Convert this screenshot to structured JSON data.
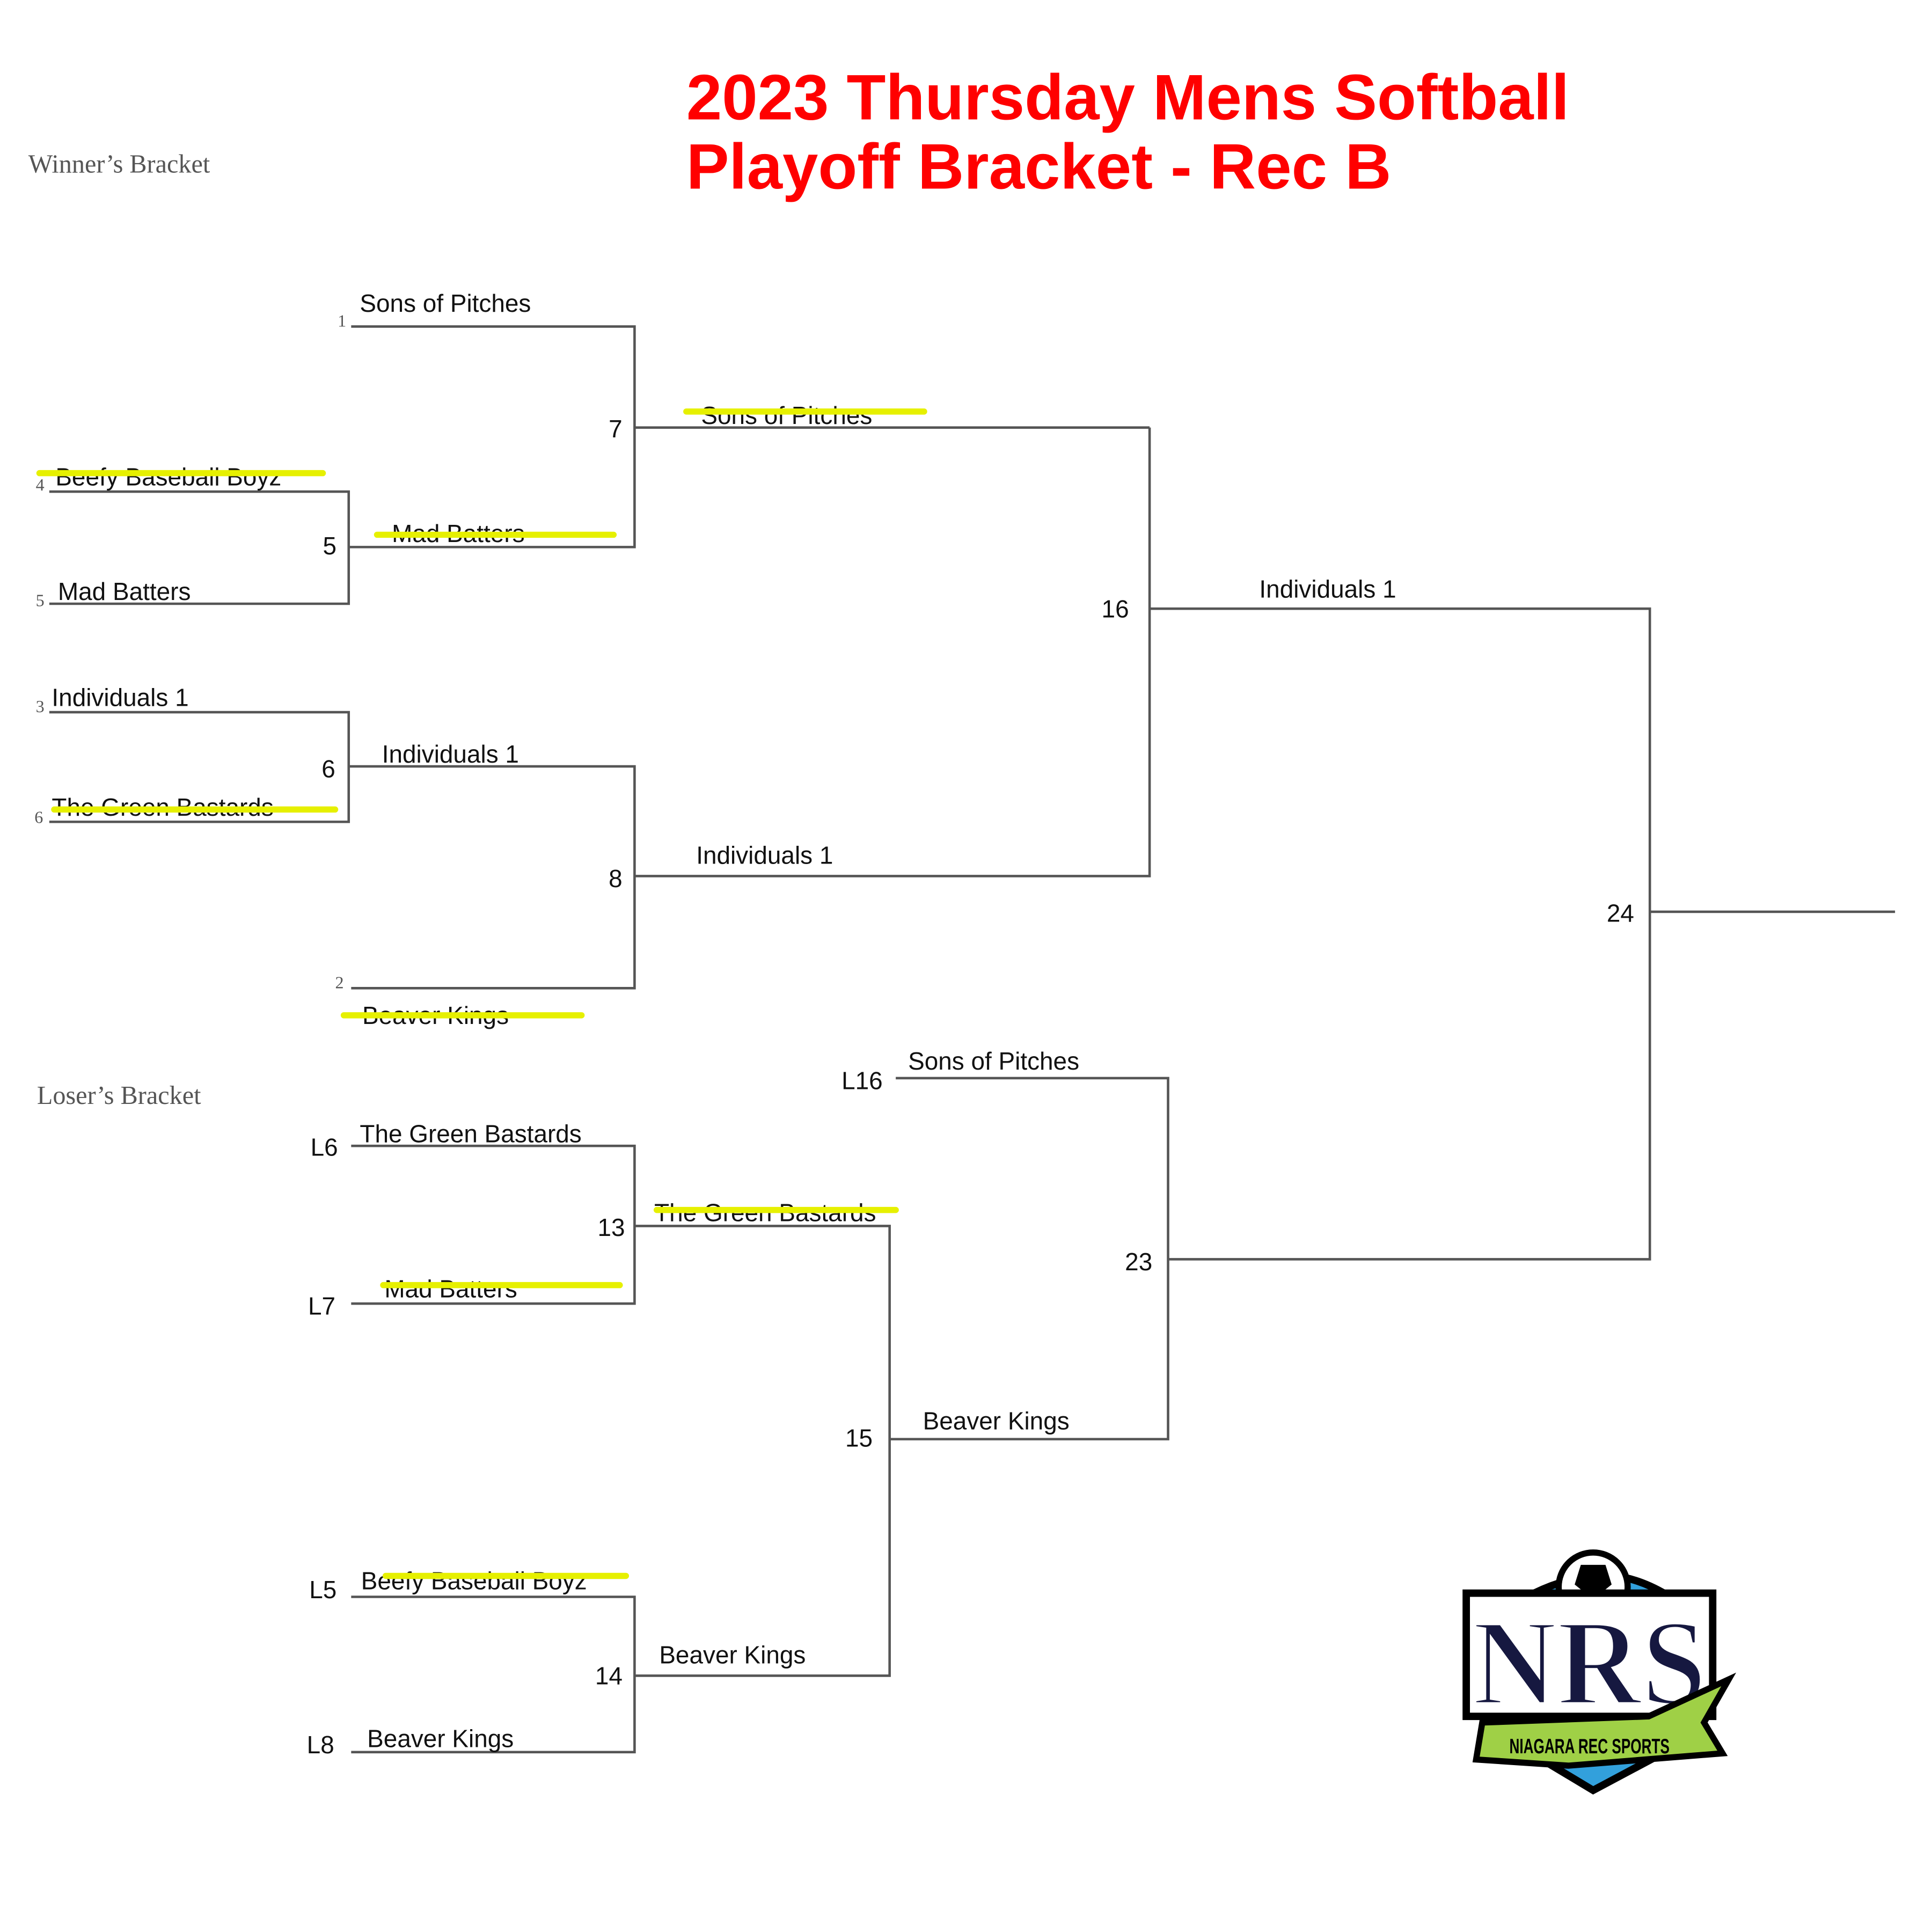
{
  "title": {
    "line1": "2023 Thursday Mens Softball",
    "line2": "Playoff Bracket - Rec B",
    "color": "#ff0000"
  },
  "highlight_color": "#e6f000",
  "winners_bracket": {
    "label": "Winner’s Bracket",
    "seeds": {
      "s1": "1",
      "s4": "4",
      "s5": "5",
      "s3": "3",
      "s6": "6",
      "s2": "2"
    },
    "games": {
      "g5": "5",
      "g6": "6",
      "g7": "7",
      "g8": "8",
      "g16": "16",
      "g24": "24"
    },
    "entries": [
      {
        "team": "Sons of Pitches",
        "eliminated": false
      },
      {
        "team": "Beefy Baseball Boyz",
        "eliminated": true
      },
      {
        "team": "Mad Batters",
        "eliminated": false
      },
      {
        "team": "Individuals 1",
        "eliminated": false
      },
      {
        "team": "The Green Bastards",
        "eliminated": true
      },
      {
        "team": "Beaver Kings",
        "eliminated": true
      },
      {
        "team": "Mad Batters",
        "eliminated": true
      },
      {
        "team": "Individuals 1",
        "eliminated": false
      },
      {
        "team": "Sons of Pitches",
        "eliminated": true
      },
      {
        "team": "Individuals 1",
        "eliminated": false
      },
      {
        "team": "Individuals 1",
        "eliminated": false
      }
    ]
  },
  "losers_bracket": {
    "label": "Loser’s Bracket",
    "seeds": {
      "l6": "L6",
      "l7": "L7",
      "l5": "L5",
      "l8": "L8",
      "l16": "L16"
    },
    "games": {
      "g13": "13",
      "g14": "14",
      "g15": "15",
      "g23": "23"
    },
    "entries": [
      {
        "team": "The Green Bastards",
        "eliminated": false
      },
      {
        "team": "Mad Batters",
        "eliminated": true
      },
      {
        "team": "Beefy Baseball Boyz",
        "eliminated": true
      },
      {
        "team": "Beaver Kings",
        "eliminated": false
      },
      {
        "team": "The Green Bastards",
        "eliminated": true
      },
      {
        "team": "Beaver Kings",
        "eliminated": false
      },
      {
        "team": "Beaver Kings",
        "eliminated": false
      },
      {
        "team": "Sons of Pitches",
        "eliminated": false
      }
    ]
  },
  "logo": {
    "initials": "NRS",
    "tagline": "NIAGARA REC SPORTS",
    "colors": {
      "navy": "#161840",
      "green": "#9fd046",
      "blue": "#32a0dc"
    }
  }
}
